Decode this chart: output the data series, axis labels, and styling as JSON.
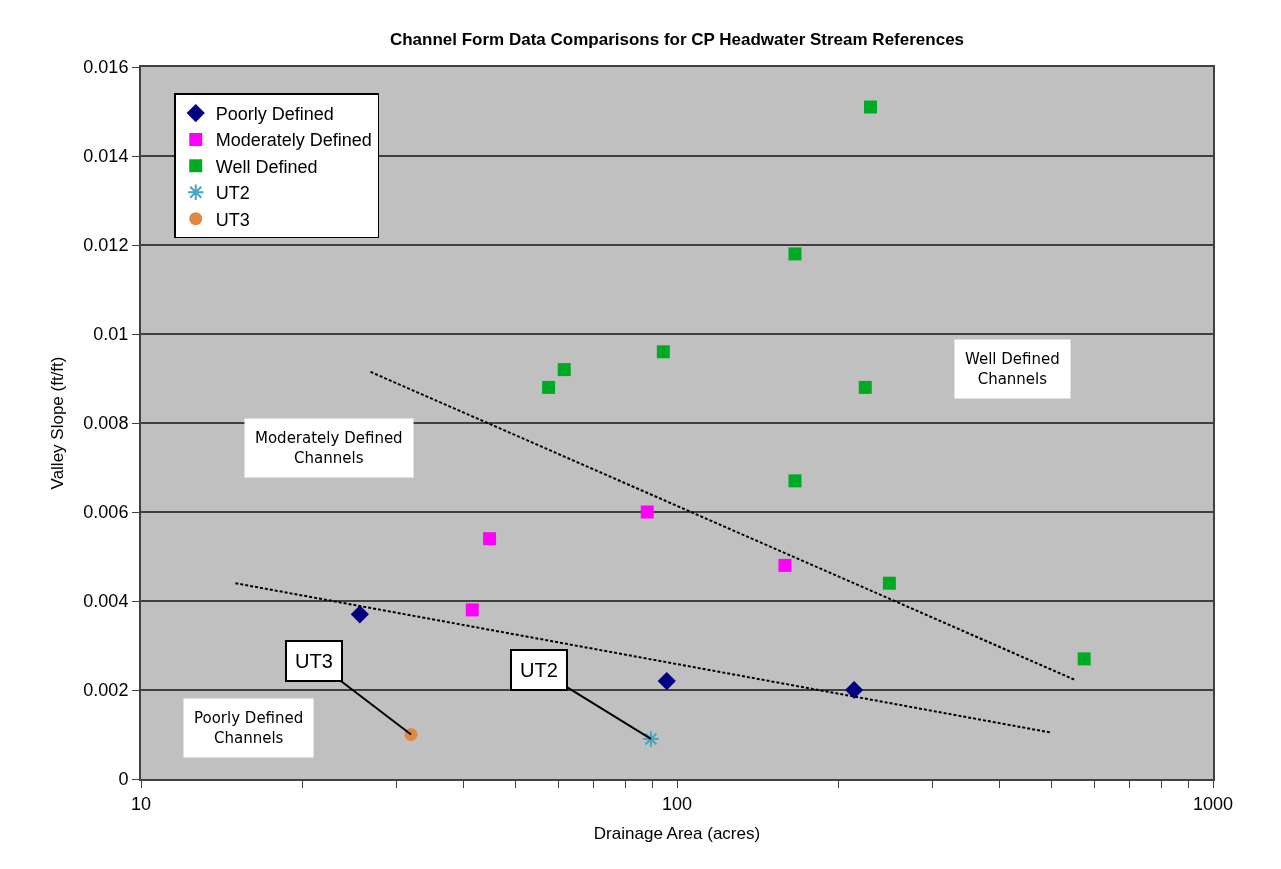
{
  "chart_data": {
    "type": "scatter",
    "title": "Channel Form Data Comparisons for CP Headwater Stream References",
    "xlabel": "Drainage Area (acres)",
    "ylabel": "Valley Slope (ft/ft)",
    "log": "x",
    "xlim": [
      10,
      1000
    ],
    "xticks": [
      10,
      {
        "value": 20,
        "label": null
      },
      {
        "value": 30,
        "label": null
      },
      {
        "value": 40,
        "label": null
      },
      {
        "value": 50,
        "label": null
      },
      {
        "value": 60,
        "label": null
      },
      {
        "value": 70,
        "label": null
      },
      {
        "value": 80,
        "label": null
      },
      {
        "value": 90,
        "label": null
      },
      100,
      {
        "value": 200,
        "label": null
      },
      {
        "value": 300,
        "label": null
      },
      {
        "value": 400,
        "label": null
      },
      {
        "value": 500,
        "label": null
      },
      {
        "value": 600,
        "label": null
      },
      {
        "value": 700,
        "label": null
      },
      {
        "value": 800,
        "label": null
      },
      {
        "value": 900,
        "label": null
      },
      1000
    ],
    "ylim": [
      0,
      0.016
    ],
    "yticks": [
      0,
      0.002,
      0.004,
      0.006,
      0.008,
      0.01,
      0.012,
      0.014,
      0.016
    ],
    "grid": "y",
    "legend": "top left",
    "series": [
      {
        "name": "Poorly Defined",
        "color": "#000080",
        "marker": "diamond",
        "x": [
          25.6,
          95.7,
          214
        ],
        "values": [
          0.0037,
          0.0022,
          0.002
        ]
      },
      {
        "name": "Moderately Defined",
        "color": "#ff00ff",
        "marker": "square",
        "x": [
          41.5,
          44.7,
          88,
          159
        ],
        "values": [
          0.0038,
          0.0054,
          0.006,
          0.0048
        ]
      },
      {
        "name": "Well Defined",
        "color": "#00aa22",
        "marker": "square",
        "x": [
          57.6,
          61.6,
          94.3,
          166,
          166,
          224.5,
          229.6,
          249,
          575
        ],
        "values": [
          0.0088,
          0.0092,
          0.0096,
          0.0118,
          0.0067,
          0.0088,
          0.0151,
          0.0044,
          0.0027
        ]
      },
      {
        "name": "UT2",
        "color": "#4aa3c0",
        "marker": "cross",
        "x": [
          89.4
        ],
        "values": [
          0.0009
        ]
      },
      {
        "name": "UT3",
        "color": "#e08840",
        "marker": "circle",
        "x": [
          31.9
        ],
        "values": [
          0.001
        ]
      },
      {
        "type": "line",
        "color": "#000000",
        "line_style": "dashed",
        "marker": "none",
        "x": [
          15,
          500
        ],
        "values": [
          0.0044,
          0.00104
        ]
      },
      {
        "type": "line",
        "color": "#000000",
        "line_style": "dashed",
        "marker": "none",
        "x": [
          26.8,
          552
        ],
        "values": [
          0.00915,
          0.00223
        ]
      }
    ],
    "annotations": [
      "Moderately Defined\nChannels",
      "Poorly Defined\nChannels",
      "Well Defined\nChannels",
      {
        "text": "UT3",
        "x": 31.9,
        "y": 0.001
      },
      {
        "text": "UT2",
        "x": 89.4,
        "y": 0.0009
      }
    ]
  }
}
